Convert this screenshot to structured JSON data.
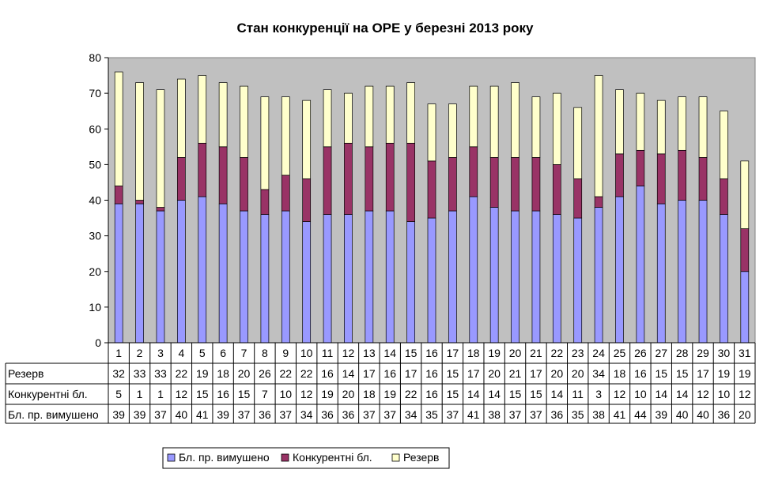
{
  "chart_data": {
    "type": "bar",
    "stacked": true,
    "title": "Стан конкуренції на ОРЕ  у березні 2013 року",
    "categories": [
      "1",
      "2",
      "3",
      "4",
      "5",
      "6",
      "7",
      "8",
      "9",
      "10",
      "11",
      "12",
      "13",
      "14",
      "15",
      "16",
      "17",
      "18",
      "19",
      "20",
      "21",
      "22",
      "23",
      "24",
      "25",
      "26",
      "27",
      "28",
      "29",
      "30",
      "31"
    ],
    "ylim": [
      0,
      80
    ],
    "yticks": [
      0,
      10,
      20,
      30,
      40,
      50,
      60,
      70,
      80
    ],
    "grid": false,
    "legend_position": "bottom",
    "series": [
      {
        "name": "Бл. пр. вимушено",
        "color": "#9999ff",
        "values": [
          39,
          39,
          37,
          40,
          41,
          39,
          37,
          36,
          37,
          34,
          36,
          36,
          37,
          37,
          34,
          35,
          37,
          41,
          38,
          37,
          37,
          36,
          35,
          38,
          41,
          44,
          39,
          40,
          40,
          36,
          20
        ]
      },
      {
        "name": "Конкурентні бл.",
        "color": "#993366",
        "values": [
          5,
          1,
          1,
          12,
          15,
          16,
          15,
          7,
          10,
          12,
          19,
          20,
          18,
          19,
          22,
          16,
          15,
          14,
          14,
          15,
          15,
          14,
          11,
          3,
          12,
          10,
          14,
          14,
          12,
          10,
          12
        ]
      },
      {
        "name": "Резерв",
        "color": "#ffffcc",
        "values": [
          32,
          33,
          33,
          22,
          19,
          18,
          20,
          26,
          22,
          22,
          16,
          14,
          17,
          16,
          17,
          16,
          15,
          17,
          20,
          21,
          17,
          20,
          20,
          34,
          18,
          16,
          15,
          15,
          17,
          19,
          19
        ]
      }
    ],
    "table_rows": [
      "Резерв",
      "Конкурентні бл.",
      "Бл. пр. вимушено"
    ],
    "colors": {
      "plot_background": "#c0c0c0",
      "axis": "#000000"
    }
  }
}
